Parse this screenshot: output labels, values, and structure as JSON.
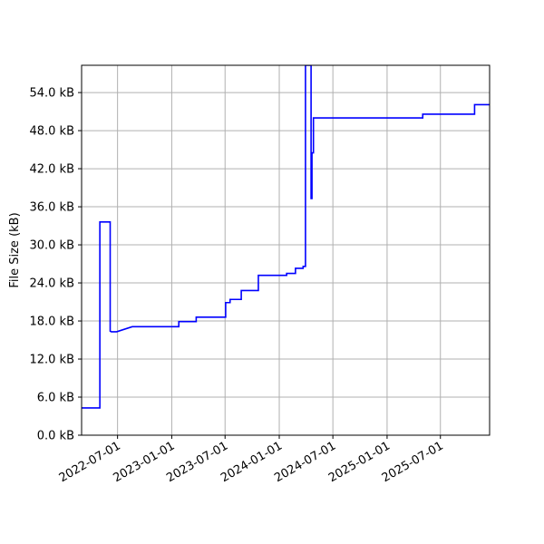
{
  "chart_data": {
    "type": "line",
    "title": "",
    "xlabel": "",
    "ylabel": "File Size (kB)",
    "grid": true,
    "x_range": [
      "2022-03-01",
      "2025-12-15"
    ],
    "ylim": [
      0,
      58.3
    ],
    "y_ticks": [
      0,
      6,
      12,
      18,
      24,
      30,
      36,
      42,
      48,
      54
    ],
    "y_tick_labels": [
      "0.0 kB",
      "6.0 kB",
      "12.0 kB",
      "18.0 kB",
      "24.0 kB",
      "30.0 kB",
      "36.0 kB",
      "42.0 kB",
      "48.0 kB",
      "54.0 kB"
    ],
    "x_ticks": [
      "2022-07-01",
      "2023-01-01",
      "2023-07-01",
      "2024-01-01",
      "2024-07-01",
      "2025-01-01",
      "2025-07-01"
    ],
    "x_tick_labels": [
      "2022-07-01",
      "2023-01-01",
      "2023-07-01",
      "2024-01-01",
      "2024-07-01",
      "2025-01-01",
      "2025-07-01"
    ],
    "series": [
      {
        "color": "#0000ff",
        "points": [
          {
            "date": "2022-03-01",
            "value": 4.3
          },
          {
            "date": "2022-05-02",
            "value": 4.3
          },
          {
            "date": "2022-05-02",
            "value": 33.6
          },
          {
            "date": "2022-06-06",
            "value": 33.6
          },
          {
            "date": "2022-06-06",
            "value": 16.4
          },
          {
            "date": "2022-06-10",
            "value": 16.3
          },
          {
            "date": "2022-06-28",
            "value": 16.3
          },
          {
            "date": "2022-08-20",
            "value": 17.1
          },
          {
            "date": "2023-01-25",
            "value": 17.1
          },
          {
            "date": "2023-01-25",
            "value": 17.9
          },
          {
            "date": "2023-03-25",
            "value": 17.9
          },
          {
            "date": "2023-03-25",
            "value": 18.6
          },
          {
            "date": "2023-07-03",
            "value": 18.6
          },
          {
            "date": "2023-07-03",
            "value": 20.9
          },
          {
            "date": "2023-07-18",
            "value": 20.9
          },
          {
            "date": "2023-07-18",
            "value": 21.4
          },
          {
            "date": "2023-08-25",
            "value": 21.4
          },
          {
            "date": "2023-08-25",
            "value": 22.8
          },
          {
            "date": "2023-10-22",
            "value": 22.8
          },
          {
            "date": "2023-10-22",
            "value": 25.2
          },
          {
            "date": "2024-01-26",
            "value": 25.2
          },
          {
            "date": "2024-01-26",
            "value": 25.5
          },
          {
            "date": "2024-02-25",
            "value": 25.5
          },
          {
            "date": "2024-02-25",
            "value": 26.3
          },
          {
            "date": "2024-03-22",
            "value": 26.3
          },
          {
            "date": "2024-03-22",
            "value": 26.6
          },
          {
            "date": "2024-03-30",
            "value": 26.6
          },
          {
            "date": "2024-03-30",
            "value": 58.3
          },
          {
            "date": "2024-04-18",
            "value": 58.3
          },
          {
            "date": "2024-04-18",
            "value": 37.3
          },
          {
            "date": "2024-04-21",
            "value": 37.3
          },
          {
            "date": "2024-04-21",
            "value": 44.5
          },
          {
            "date": "2024-04-26",
            "value": 44.5
          },
          {
            "date": "2024-04-26",
            "value": 50.0
          },
          {
            "date": "2025-05-02",
            "value": 50.0
          },
          {
            "date": "2025-05-02",
            "value": 50.6
          },
          {
            "date": "2025-10-25",
            "value": 50.6
          },
          {
            "date": "2025-10-25",
            "value": 52.1
          },
          {
            "date": "2025-12-15",
            "value": 52.1
          }
        ]
      }
    ]
  }
}
